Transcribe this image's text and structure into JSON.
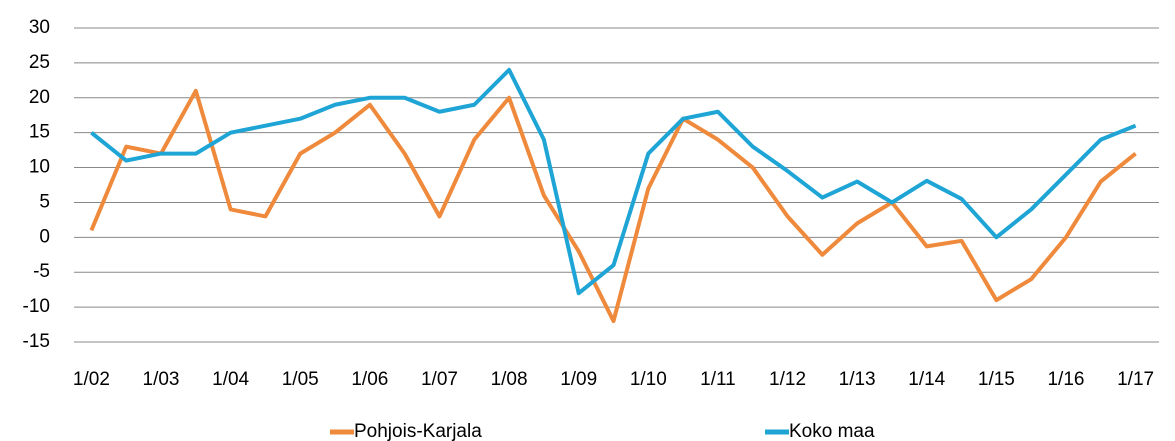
{
  "chart_data": {
    "type": "line",
    "categories": [
      "1/02",
      null,
      "1/03",
      null,
      "1/04",
      null,
      "1/05",
      null,
      "1/06",
      null,
      "1/07",
      null,
      "1/08",
      null,
      "1/09",
      null,
      "1/10",
      null,
      "1/11",
      null,
      "1/12",
      null,
      "1/13",
      null,
      "1/14",
      null,
      "1/15",
      null,
      "1/16",
      null,
      "1/17"
    ],
    "series": [
      {
        "name": "Pohjois-Karjala",
        "color": "#ef8a3c",
        "values": [
          1,
          13,
          12,
          21,
          4,
          3,
          12,
          15,
          19,
          12,
          3,
          14,
          20,
          6,
          -2,
          -12,
          7,
          17,
          14,
          10,
          3,
          -2.5,
          2,
          5,
          -1.3,
          -0.5,
          -9,
          -6,
          0,
          8,
          12
        ]
      },
      {
        "name": "Koko maa",
        "color": "#1ea5d6",
        "values": [
          15,
          11,
          12,
          12,
          15,
          16,
          17,
          19,
          20,
          20,
          18,
          19,
          24,
          14,
          -8,
          -4,
          12,
          17,
          18,
          13,
          9.5,
          5.7,
          8,
          5,
          8.1,
          5.5,
          0,
          4,
          9,
          14,
          16
        ]
      }
    ],
    "ylim": [
      -15,
      30
    ],
    "yticks": [
      -15,
      -10,
      -5,
      0,
      5,
      10,
      15,
      20,
      25,
      30
    ],
    "grid": true,
    "legend": "bottom"
  }
}
